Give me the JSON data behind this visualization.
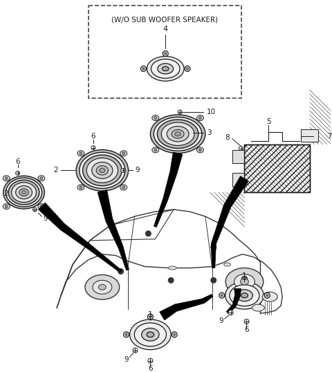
{
  "bg_color": "#ffffff",
  "fig_width": 4.8,
  "fig_height": 5.38,
  "dpi": 100,
  "box_label": "(W/O SUB WOOFER SPEAKER)",
  "line_color": "#1a1a1a",
  "text_color": "#1a1a1a",
  "gray": "#888888",
  "lightgray": "#cccccc",
  "darkgray": "#555555"
}
